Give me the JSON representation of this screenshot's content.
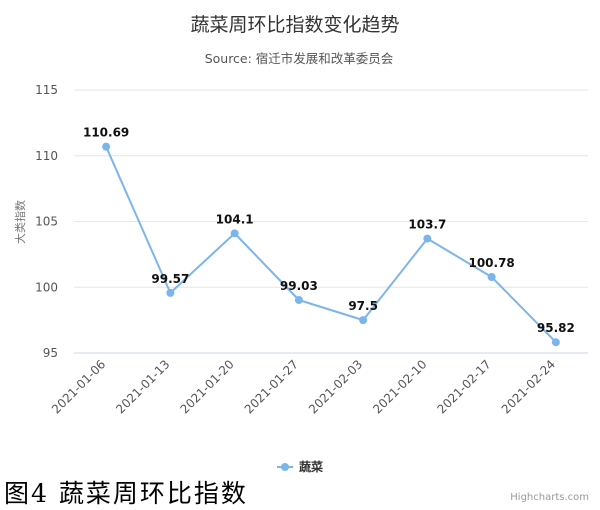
{
  "chart_data": {
    "type": "line",
    "title": "蔬菜周环比指数变化趋势",
    "subtitle": "Source: 宿迁市发展和改革委员会",
    "ylabel": "大类指数",
    "xlabel": "",
    "ylim": [
      95,
      115
    ],
    "yticks": [
      95,
      100,
      105,
      110,
      115
    ],
    "grid": true,
    "legend_position": "bottom-center",
    "categories": [
      "2021-01-06",
      "2021-01-13",
      "2021-01-20",
      "2021-01-27",
      "2021-02-03",
      "2021-02-10",
      "2021-02-17",
      "2021-02-24"
    ],
    "series": [
      {
        "name": "蔬菜",
        "color": "#7cb5ec",
        "values": [
          110.69,
          99.57,
          104.1,
          99.03,
          97.5,
          103.7,
          100.78,
          95.82
        ],
        "labels": [
          "110.69",
          "99.57",
          "104.1",
          "99.03",
          "97.5",
          "103.7",
          "100.78",
          "95.82"
        ]
      }
    ],
    "credits": "Highcharts.com"
  },
  "caption": "图4 蔬菜周环比指数"
}
